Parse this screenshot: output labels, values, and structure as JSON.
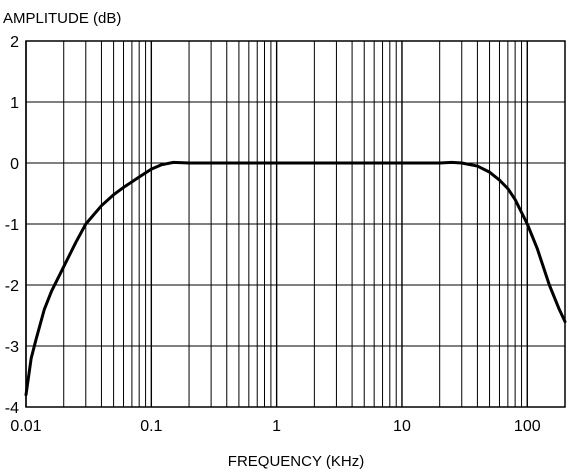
{
  "chart_data": {
    "type": "line",
    "title": "",
    "xlabel": "FREQUENCY (KHz)",
    "ylabel": "AMPLITUDE (dB)",
    "x_scale": "log",
    "xlim": [
      0.01,
      200
    ],
    "ylim": [
      -4,
      2
    ],
    "grid": true,
    "legend": "none",
    "x_tick_values": [
      0.01,
      0.1,
      1,
      10,
      100
    ],
    "x_tick_labels": [
      "0.01",
      "0.1",
      "1",
      "10",
      "100"
    ],
    "y_tick_values": [
      2,
      1,
      0,
      -1,
      -2,
      -3,
      -4
    ],
    "y_tick_labels": [
      "2",
      "1",
      "0",
      "-1",
      "-2",
      "-3",
      "-4"
    ],
    "series": [
      {
        "line_color": "#000000",
        "x": [
          0.01,
          0.011,
          0.012,
          0.014,
          0.016,
          0.02,
          0.025,
          0.03,
          0.04,
          0.05,
          0.06,
          0.07,
          0.08,
          0.1,
          0.12,
          0.15,
          0.2,
          0.5,
          1,
          5,
          10,
          20,
          25,
          30,
          40,
          50,
          60,
          70,
          80,
          100,
          120,
          150,
          180,
          200
        ],
        "y": [
          -3.8,
          -3.2,
          -2.9,
          -2.4,
          -2.1,
          -1.7,
          -1.3,
          -1.0,
          -0.7,
          -0.52,
          -0.4,
          -0.31,
          -0.23,
          -0.1,
          -0.03,
          0.01,
          0.0,
          0.0,
          0.0,
          0.0,
          0.0,
          0.0,
          0.01,
          0.0,
          -0.05,
          -0.15,
          -0.28,
          -0.42,
          -0.6,
          -1.0,
          -1.4,
          -2.0,
          -2.4,
          -2.6
        ]
      }
    ]
  }
}
